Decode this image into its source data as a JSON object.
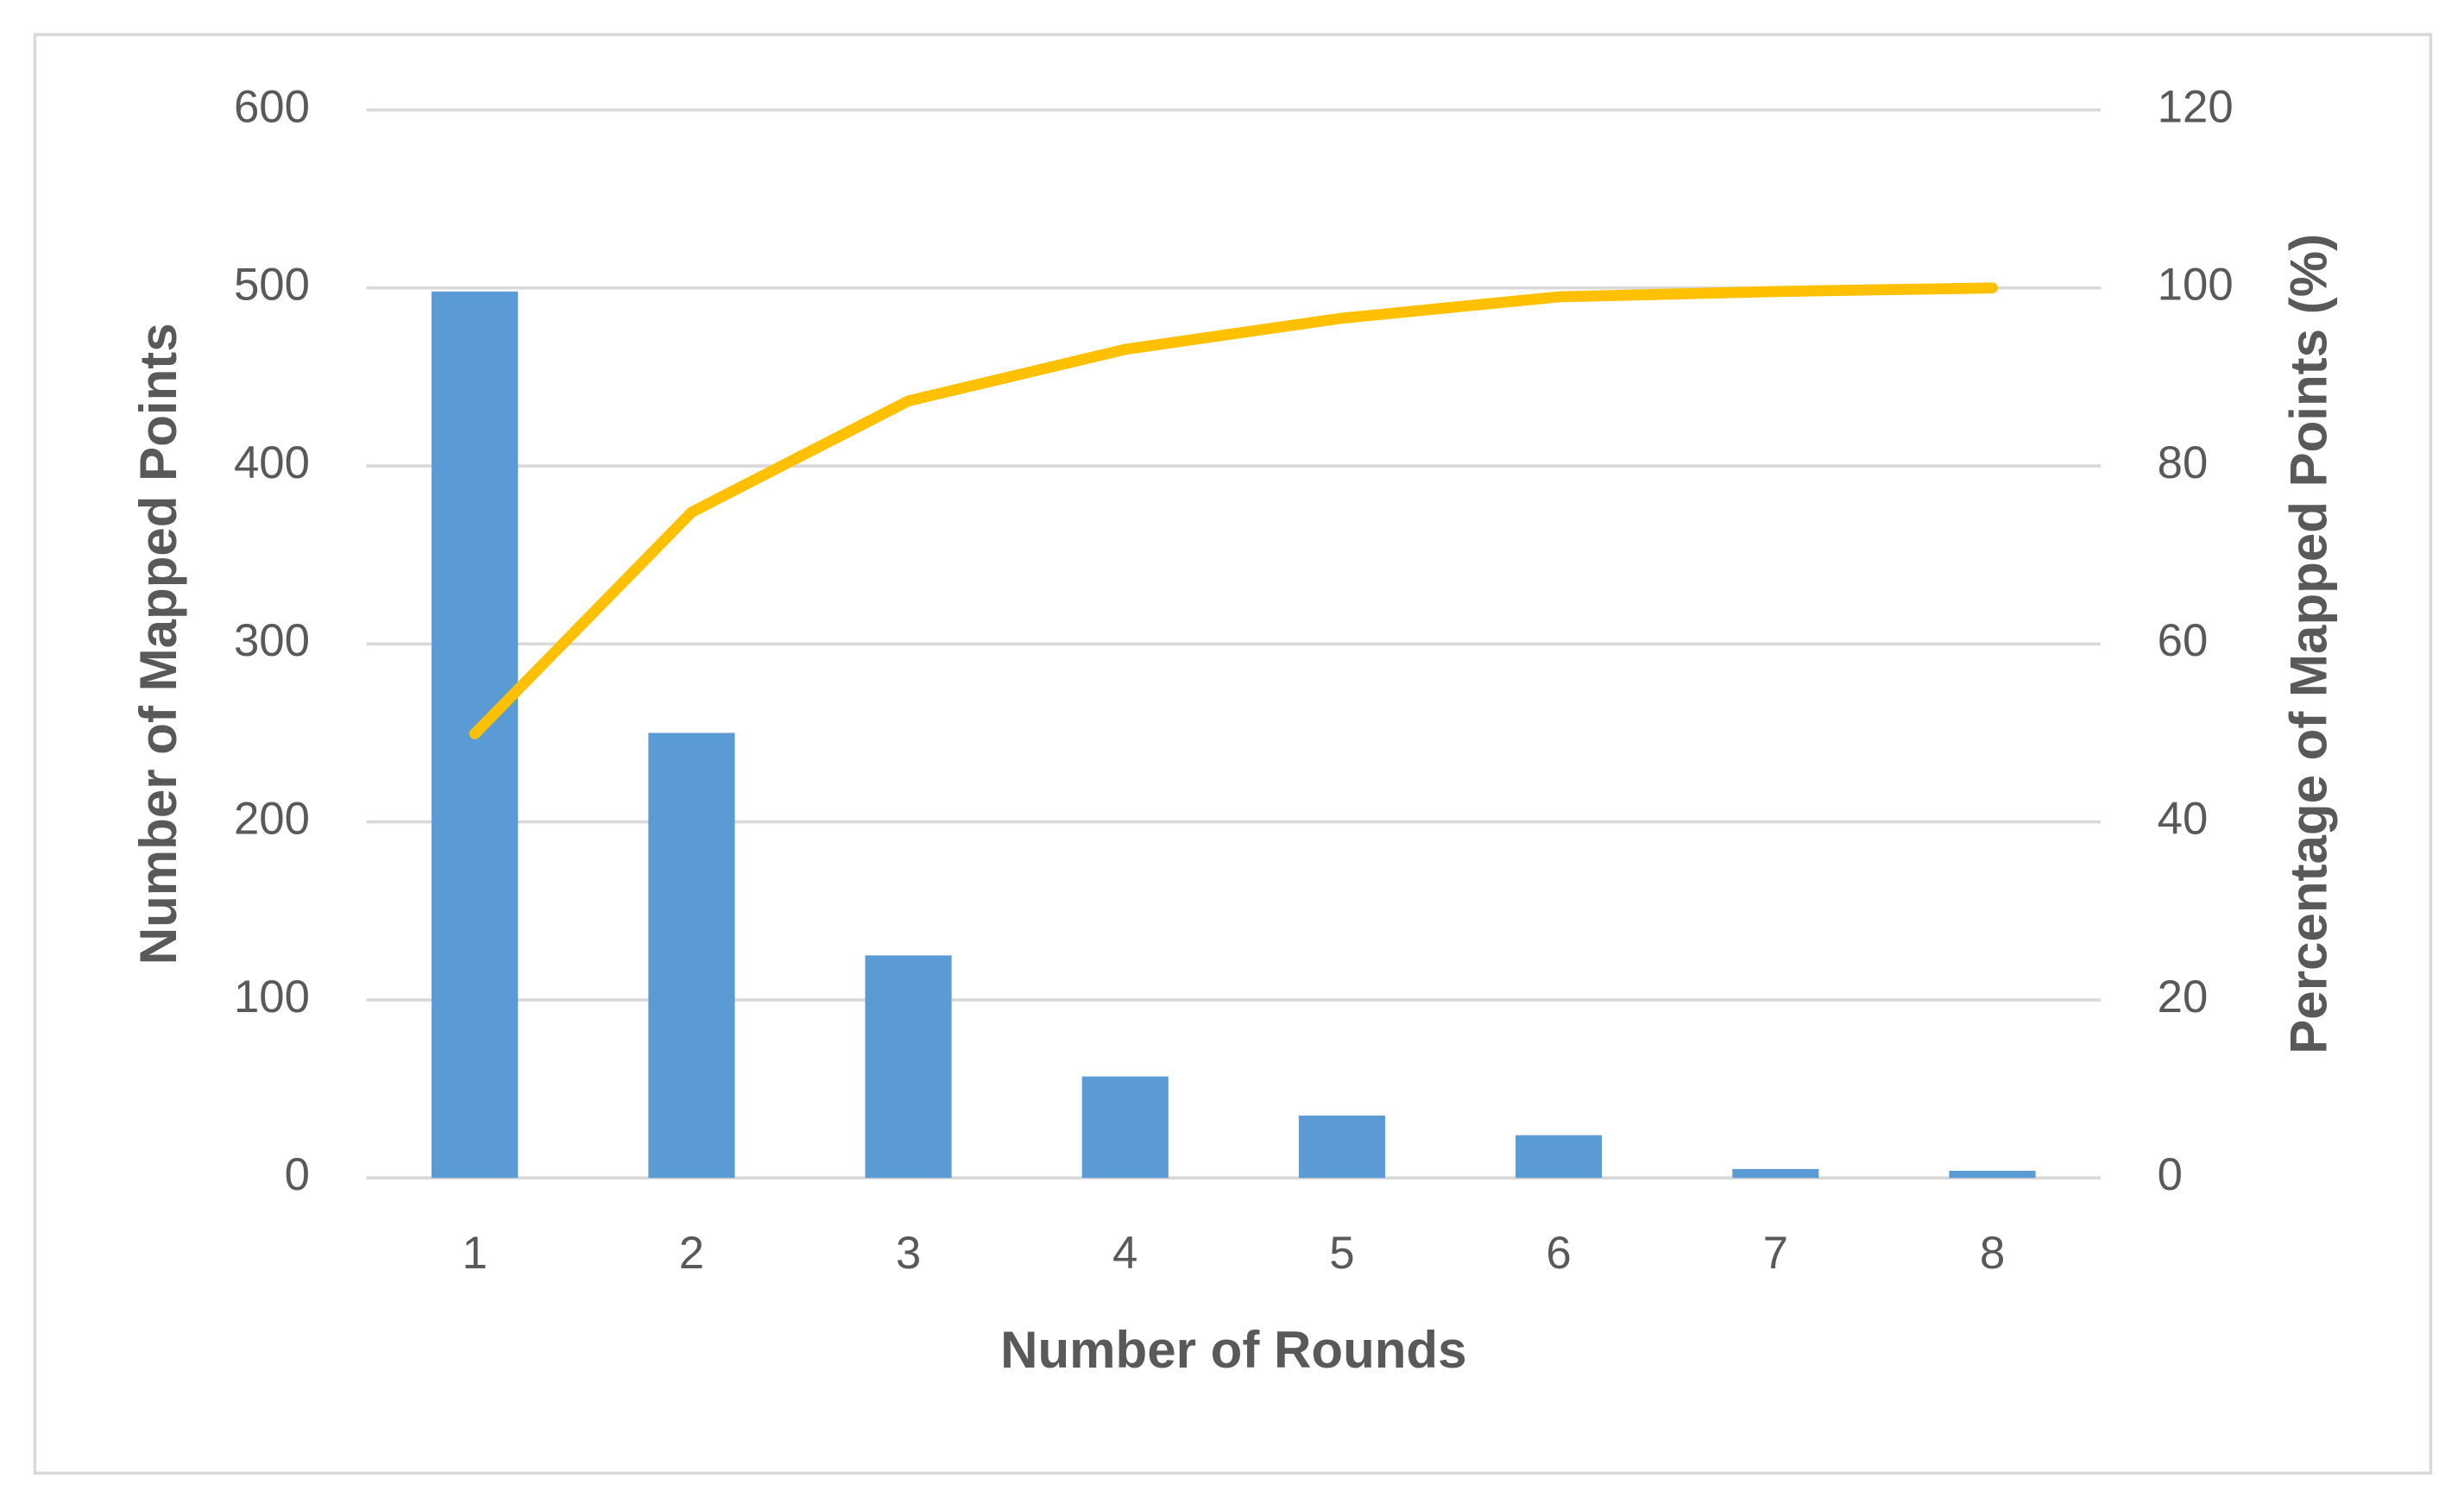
{
  "chart_data": {
    "type": "bar",
    "x_label": "Number of Rounds",
    "y_label": "Number of Mapped Points",
    "y2_label": "Percentage of Mapped Points (%)",
    "categories": [
      "1",
      "2",
      "3",
      "4",
      "5",
      "6",
      "7",
      "8"
    ],
    "series": [
      {
        "type": "bar",
        "color": "#5b9bd5",
        "values": [
          498,
          250,
          125,
          57,
          35,
          24,
          5,
          4
        ]
      },
      {
        "type": "line",
        "color": "#ffc000",
        "axis": "y2",
        "values": [
          49.9,
          74.8,
          87.3,
          93.1,
          96.6,
          99.0,
          99.6,
          100
        ]
      }
    ],
    "ylim": [
      0,
      600
    ],
    "yticks": [
      0,
      100,
      200,
      300,
      400,
      500,
      600
    ],
    "y2lim": [
      0,
      120
    ],
    "y2ticks": [
      0,
      20,
      40,
      60,
      80,
      100,
      120
    ],
    "grid": true
  }
}
